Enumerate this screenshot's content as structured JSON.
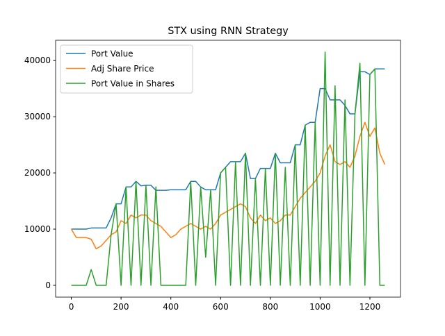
{
  "chart_data": {
    "type": "line",
    "title": "STX using RNN Strategy",
    "x": [
      0,
      20,
      40,
      60,
      80,
      100,
      120,
      140,
      160,
      180,
      200,
      220,
      240,
      260,
      280,
      300,
      320,
      340,
      360,
      380,
      400,
      420,
      440,
      460,
      480,
      500,
      520,
      540,
      560,
      580,
      600,
      620,
      640,
      660,
      680,
      700,
      720,
      740,
      760,
      780,
      800,
      820,
      840,
      860,
      880,
      900,
      920,
      940,
      960,
      980,
      1000,
      1020,
      1040,
      1060,
      1080,
      1100,
      1120,
      1140,
      1160,
      1180,
      1200,
      1220,
      1240,
      1260
    ],
    "series": [
      {
        "name": "Port Value",
        "color": "#1f77b4",
        "values": [
          10000,
          10000,
          10000,
          10000,
          10200,
          10200,
          10200,
          10200,
          12000,
          14500,
          14500,
          17500,
          17500,
          18500,
          17700,
          17800,
          17800,
          16900,
          16900,
          16900,
          17000,
          17000,
          17000,
          17000,
          18500,
          18500,
          17500,
          17000,
          17000,
          17000,
          20000,
          21000,
          22000,
          22000,
          22000,
          23500,
          19000,
          19000,
          20800,
          20800,
          20800,
          23500,
          21800,
          21800,
          21800,
          25000,
          25000,
          28500,
          29000,
          29000,
          35000,
          35000,
          33000,
          33000,
          33000,
          32000,
          30500,
          30500,
          38000,
          38000,
          37500,
          38500,
          38500,
          38500
        ]
      },
      {
        "name": "Adj Share Price",
        "color": "#ff7f0e",
        "values": [
          10000,
          8500,
          8500,
          8500,
          8200,
          6500,
          7000,
          8000,
          9000,
          9500,
          11500,
          11000,
          12500,
          12000,
          12500,
          12500,
          11500,
          11000,
          10500,
          9500,
          8500,
          9000,
          10000,
          10500,
          11000,
          10500,
          10000,
          10500,
          10000,
          11000,
          12500,
          13000,
          13500,
          14000,
          14500,
          14000,
          12000,
          11000,
          12500,
          11500,
          12000,
          11000,
          11500,
          12500,
          12500,
          14000,
          15500,
          16500,
          17500,
          18500,
          20000,
          23000,
          25000,
          22000,
          21500,
          22000,
          21000,
          23000,
          26500,
          29000,
          26500,
          28000,
          23500,
          21500
        ]
      },
      {
        "name": "Port Value in Shares",
        "color": "#2ca02c",
        "values": [
          0,
          0,
          0,
          0,
          2800,
          0,
          0,
          0,
          9000,
          14500,
          0,
          17500,
          0,
          18500,
          0,
          17800,
          0,
          17500,
          0,
          0,
          0,
          0,
          0,
          0,
          18500,
          0,
          17500,
          5000,
          17000,
          0,
          20000,
          21000,
          0,
          22000,
          0,
          23500,
          0,
          19000,
          0,
          20800,
          0,
          23500,
          0,
          21000,
          0,
          25000,
          0,
          28500,
          0,
          29000,
          0,
          41500,
          0,
          35500,
          0,
          33000,
          0,
          30500,
          39500,
          0,
          37500,
          38500,
          0,
          0
        ]
      }
    ],
    "xlim": [
      -63,
      1323
    ],
    "ylim": [
      -2100,
      43600
    ],
    "xticks": [
      0,
      200,
      400,
      600,
      800,
      1000,
      1200
    ],
    "yticks": [
      0,
      10000,
      20000,
      30000,
      40000
    ],
    "legend": "upper left",
    "grid": false
  }
}
